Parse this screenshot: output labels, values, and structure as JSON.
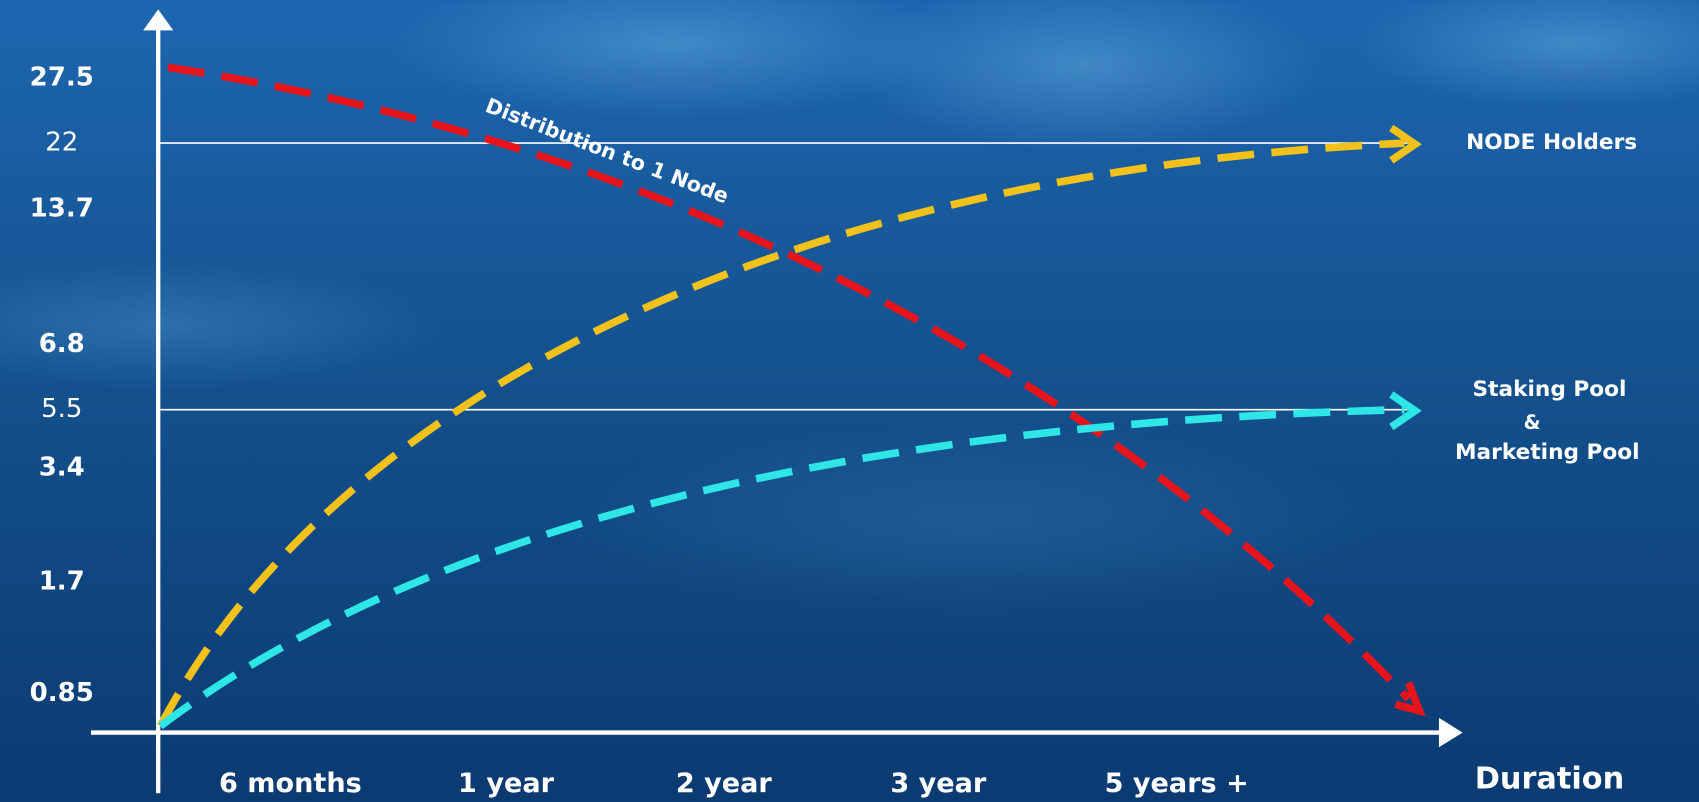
{
  "axis": {
    "y_labels": [
      "27.5",
      "22",
      "13.7",
      "6.8",
      "5.5",
      "3.4",
      "1.7",
      "0.85"
    ],
    "x_labels": [
      "6 months",
      "1 year",
      "2 year",
      "3 year",
      "5 years +"
    ],
    "x_title": "Duration"
  },
  "curves": [
    {
      "label": [
        "Distribution to 1 Node"
      ]
    },
    {
      "label": [
        "NODE Holders"
      ]
    },
    {
      "label": [
        "Staking Pool",
        "&",
        "Marketing Pool"
      ]
    }
  ]
}
